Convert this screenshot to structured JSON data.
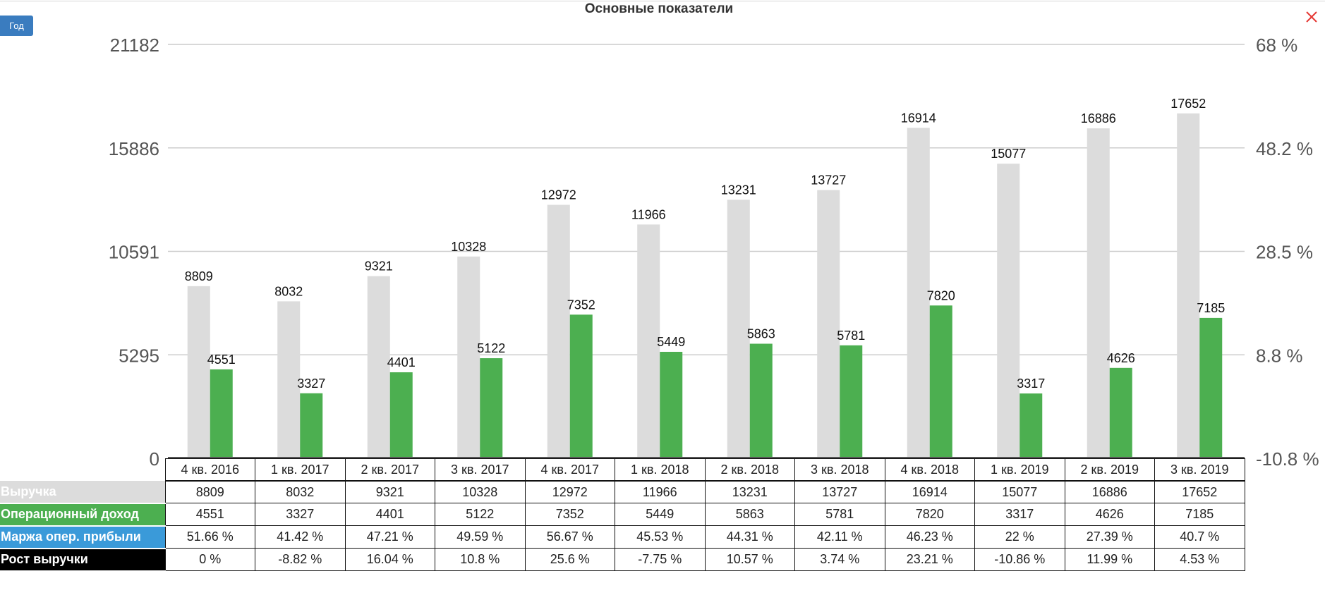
{
  "header": {
    "title": "Основные показатели",
    "period_button": "Год",
    "close_label": "X"
  },
  "colors": {
    "revenue": "#dcdcdc",
    "operating_income": "#4caf50",
    "operating_margin": "#3a9ad9",
    "revenue_growth": "#000000",
    "close": "#e53935",
    "button": "#3a7cbf"
  },
  "chart_data": {
    "type": "bar",
    "title": "Основные показатели",
    "categories": [
      "4 кв. 2016",
      "1 кв. 2017",
      "2 кв. 2017",
      "3 кв. 2017",
      "4 кв. 2017",
      "1 кв. 2018",
      "2 кв. 2018",
      "3 кв. 2018",
      "4 кв. 2018",
      "1 кв. 2019",
      "2 кв. 2019",
      "3 кв. 2019"
    ],
    "series": [
      {
        "name": "Выручка",
        "values": [
          8809,
          8032,
          9321,
          10328,
          12972,
          11966,
          13231,
          13727,
          16914,
          15077,
          16886,
          17652
        ]
      },
      {
        "name": "Операционный доход",
        "values": [
          4551,
          3327,
          4401,
          5122,
          7352,
          5449,
          5863,
          5781,
          7820,
          3317,
          4626,
          7185
        ]
      }
    ],
    "ylim": [
      0,
      21182
    ],
    "y_ticks": [
      "21182",
      "15886",
      "10591",
      "5295",
      "0"
    ],
    "y2_ticks": [
      "68 %",
      "48.2 %",
      "28.5 %",
      "8.8 %",
      "-10.8 %"
    ],
    "grid": true,
    "legend": "table-below"
  },
  "table": {
    "rows": [
      {
        "label": "Выручка",
        "cells": [
          "8809",
          "8032",
          "9321",
          "10328",
          "12972",
          "11966",
          "13231",
          "13727",
          "16914",
          "15077",
          "16886",
          "17652"
        ]
      },
      {
        "label": "Операционный доход",
        "cells": [
          "4551",
          "3327",
          "4401",
          "5122",
          "7352",
          "5449",
          "5863",
          "5781",
          "7820",
          "3317",
          "4626",
          "7185"
        ]
      },
      {
        "label": "Маржа опер. прибыли",
        "cells": [
          "51.66 %",
          "41.42 %",
          "47.21 %",
          "49.59 %",
          "56.67 %",
          "45.53 %",
          "44.31 %",
          "42.11 %",
          "46.23 %",
          "22 %",
          "27.39 %",
          "40.7 %"
        ]
      },
      {
        "label": "Рост выручки",
        "cells": [
          "0 %",
          "-8.82 %",
          "16.04 %",
          "10.8 %",
          "25.6 %",
          "-7.75 %",
          "10.57 %",
          "3.74 %",
          "23.21 %",
          "-10.86 %",
          "11.99 %",
          "4.53 %"
        ]
      }
    ]
  }
}
